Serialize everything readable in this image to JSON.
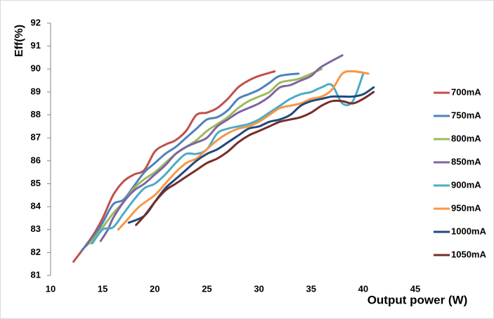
{
  "chart_data": {
    "type": "line",
    "y_label": "Eff(%)",
    "x_label": "Output power (W)",
    "xlim": [
      10,
      45
    ],
    "xticks": [
      10,
      15,
      20,
      25,
      30,
      35,
      40,
      45
    ],
    "ylim": [
      81,
      92
    ],
    "yticks": [
      81,
      82,
      83,
      84,
      85,
      86,
      87,
      88,
      89,
      90,
      91,
      92
    ],
    "grid": false,
    "legend": "right",
    "series": [
      {
        "name": "700mA",
        "color": "#c0504d",
        "x": [
          12.2,
          14,
          15,
          16,
          17,
          18,
          19,
          20,
          21,
          22,
          23,
          24,
          25,
          26,
          27,
          28,
          29,
          30,
          31.5
        ],
        "values": [
          81.6,
          82.7,
          83.5,
          84.5,
          85.1,
          85.4,
          85.6,
          86.4,
          86.7,
          86.9,
          87.3,
          88,
          88.1,
          88.3,
          88.7,
          89.2,
          89.5,
          89.7,
          89.9
        ]
      },
      {
        "name": "750mA",
        "color": "#4f81bd",
        "x": [
          13,
          14,
          15,
          16,
          17,
          18,
          19,
          20,
          21,
          22,
          23,
          24,
          25,
          26,
          27,
          28,
          29,
          30,
          31,
          32,
          33.8
        ],
        "values": [
          82.1,
          82.6,
          83.3,
          84.1,
          84.3,
          84.9,
          85.5,
          85.9,
          86.3,
          86.6,
          87.0,
          87.4,
          87.8,
          87.9,
          88.2,
          88.7,
          88.9,
          89.1,
          89.4,
          89.7,
          89.8
        ]
      },
      {
        "name": "800mA",
        "color": "#9bbb59",
        "x": [
          13.8,
          15,
          16,
          17,
          18,
          19,
          20,
          21,
          22,
          23,
          24,
          25,
          26,
          27,
          28,
          29,
          30,
          31,
          32,
          33,
          34,
          36
        ],
        "values": [
          82.4,
          83.1,
          83.7,
          84.2,
          84.8,
          85.2,
          85.5,
          85.9,
          86.3,
          86.6,
          86.9,
          87.3,
          87.6,
          87.9,
          88.3,
          88.6,
          88.8,
          89.0,
          89.4,
          89.5,
          89.6,
          90.0
        ]
      },
      {
        "name": "850mA",
        "color": "#8064a2",
        "x": [
          14.8,
          15.5,
          16,
          17,
          18,
          19,
          20,
          21,
          22,
          23,
          24,
          25,
          26,
          27,
          28,
          29,
          30,
          31,
          32,
          33,
          34,
          35,
          36,
          38
        ],
        "values": [
          82.5,
          83.0,
          83.5,
          84.2,
          84.7,
          85.0,
          85.4,
          85.8,
          86.3,
          86.6,
          86.8,
          87.0,
          87.5,
          87.8,
          88.1,
          88.3,
          88.5,
          88.8,
          89.2,
          89.3,
          89.5,
          89.7,
          90.1,
          90.6
        ]
      },
      {
        "name": "900mA",
        "color": "#4bacc6",
        "x": [
          14,
          15,
          16,
          17,
          18,
          19,
          20,
          21,
          22,
          23,
          24,
          25,
          26,
          27,
          28,
          29,
          30,
          31,
          32,
          33,
          34,
          35,
          36,
          37,
          38,
          39,
          40
        ],
        "values": [
          82.4,
          83.0,
          83.1,
          83.7,
          84.3,
          84.8,
          85.0,
          85.4,
          85.9,
          86.3,
          86.3,
          86.5,
          87.2,
          87.4,
          87.5,
          87.6,
          87.8,
          88.1,
          88.4,
          88.7,
          88.9,
          89.0,
          89.2,
          89.3,
          88.5,
          88.6,
          89.8
        ]
      },
      {
        "name": "950mA",
        "color": "#f79646",
        "x": [
          16.5,
          17.5,
          18.5,
          20,
          21,
          22,
          23,
          24,
          25,
          26,
          27,
          28,
          29,
          30,
          31,
          32,
          33,
          34,
          35,
          36,
          37,
          38,
          39,
          40.5
        ],
        "values": [
          83.0,
          83.5,
          84.0,
          84.5,
          85.0,
          85.5,
          85.9,
          86.1,
          86.5,
          86.9,
          87.2,
          87.4,
          87.5,
          87.7,
          88.0,
          88.3,
          88.4,
          88.5,
          88.7,
          88.8,
          89.1,
          89.8,
          89.9,
          89.8
        ]
      },
      {
        "name": "1000mA",
        "color": "#1f497d",
        "x": [
          17.5,
          19,
          20,
          21,
          22,
          23,
          24,
          25,
          26,
          27,
          28,
          29,
          30,
          31,
          32,
          33,
          34,
          35,
          36,
          37,
          38,
          39,
          40,
          41
        ],
        "values": [
          83.3,
          83.6,
          84.2,
          84.8,
          85.2,
          85.6,
          86.0,
          86.3,
          86.5,
          86.8,
          87.1,
          87.4,
          87.5,
          87.7,
          87.8,
          88.0,
          88.4,
          88.6,
          88.7,
          88.8,
          88.8,
          88.8,
          88.9,
          89.2
        ]
      },
      {
        "name": "1050mA",
        "color": "#772c2a",
        "x": [
          18.2,
          19,
          20,
          21,
          22,
          23,
          24,
          25,
          26,
          27,
          28,
          29,
          30,
          31,
          32,
          33,
          34,
          35,
          36,
          37,
          38,
          39,
          40,
          41
        ],
        "values": [
          83.2,
          83.6,
          84.2,
          84.7,
          85.0,
          85.3,
          85.6,
          85.9,
          86.1,
          86.4,
          86.8,
          87.1,
          87.3,
          87.5,
          87.7,
          87.8,
          87.9,
          88.1,
          88.4,
          88.6,
          88.6,
          88.5,
          88.7,
          89.0
        ]
      }
    ]
  }
}
